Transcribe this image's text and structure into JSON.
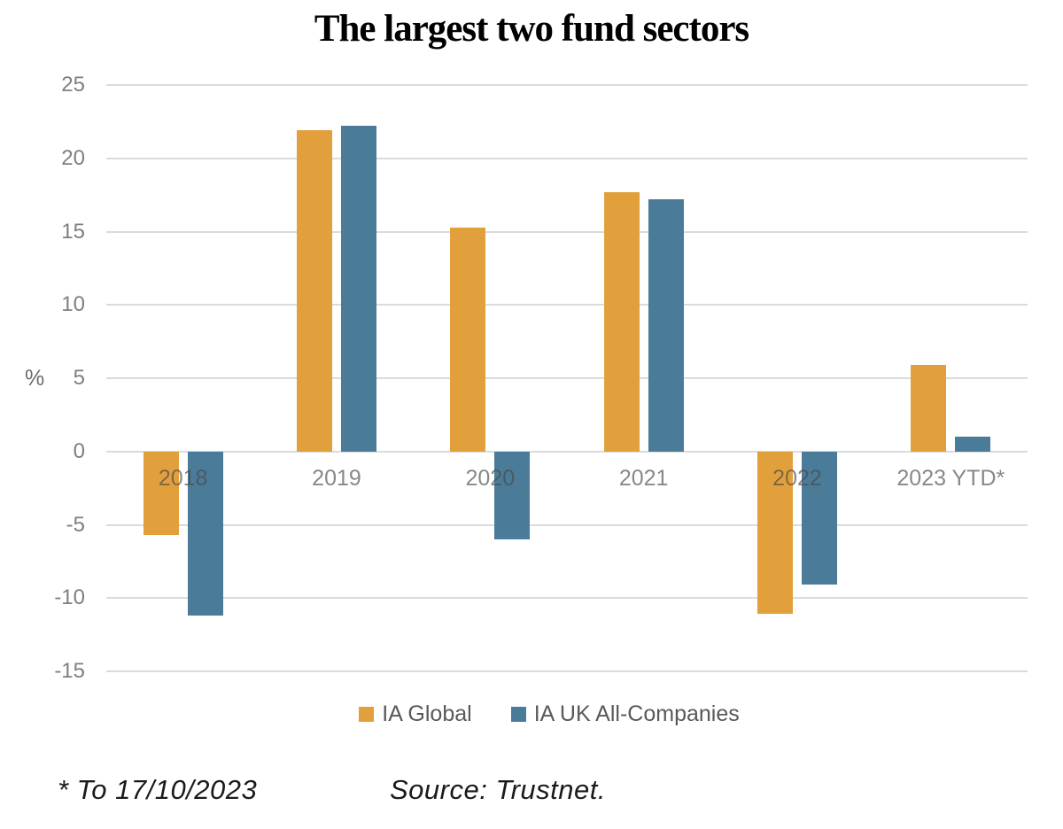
{
  "title": "The largest two fund sectors",
  "footnote": "* To 17/10/2023",
  "source": "Source: Trustnet.",
  "colors": {
    "ia_global": "#E2A03C",
    "ia_uk_all_companies": "#4A7C99",
    "gridline": "#DBDBDB",
    "axis_text": "#7F7F7F",
    "legend_text": "#595959",
    "footer_text": "#1A1A1A"
  },
  "chart_data": {
    "type": "bar",
    "title": "The largest two fund sectors",
    "categories": [
      "2018",
      "2019",
      "2020",
      "2021",
      "2022",
      "2023 YTD*"
    ],
    "series": [
      {
        "name": "IA Global",
        "color": "#E2A03C",
        "values": [
          -5.7,
          21.9,
          15.3,
          17.7,
          -11.1,
          5.9
        ]
      },
      {
        "name": "IA UK All-Companies",
        "color": "#4A7C99",
        "values": [
          -11.2,
          22.2,
          -6.0,
          17.2,
          -9.1,
          1.0
        ]
      }
    ],
    "xlabel": "",
    "ylabel": "%",
    "ylim": [
      -15,
      25
    ],
    "yticks": [
      25,
      20,
      15,
      10,
      5,
      0,
      -5,
      -10,
      -15
    ],
    "grid": true,
    "legend_position": "bottom",
    "x_labels_at_zero_line": true
  }
}
